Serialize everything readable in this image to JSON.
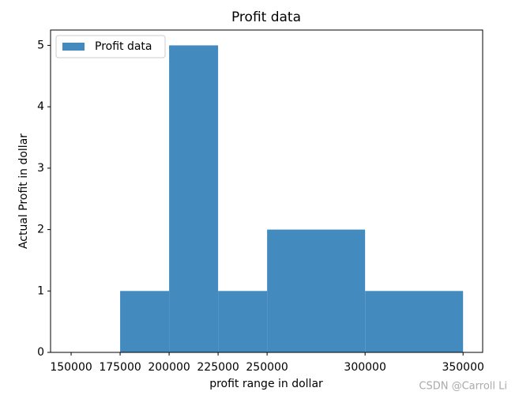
{
  "chart_data": {
    "type": "histogram",
    "title": "Profit data",
    "x_label": "profit range in dollar",
    "y_label": "Actual Profit in dollar",
    "bins": [
      175000,
      200000,
      225000,
      250000,
      300000,
      350000
    ],
    "series": [
      {
        "name": "Profit data",
        "color": "#438bbf",
        "values": [
          1,
          5,
          1,
          2,
          1
        ]
      }
    ],
    "xlim": [
      139500,
      360000
    ],
    "xticks": [
      150000,
      175000,
      200000,
      225000,
      250000,
      300000,
      350000
    ],
    "ylim": [
      0,
      5.25
    ],
    "yticks": [
      0,
      1,
      2,
      3,
      4,
      5
    ],
    "grid": false,
    "legend": "upper left",
    "watermark": "CSDN @Carroll Li"
  }
}
